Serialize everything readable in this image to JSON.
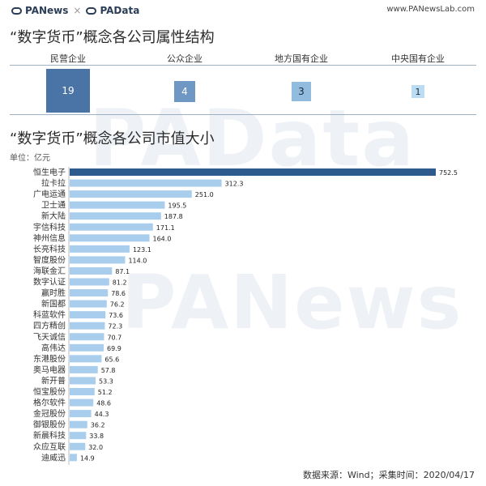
{
  "header": {
    "brand_left": "PANews",
    "brand_right": "PAData",
    "site": "www.PANewsLab.com"
  },
  "titles": {
    "ownership": "“数字货币”概念各公司属性结构",
    "market_cap": "“数字货币”概念各公司市值大小"
  },
  "unit_label": "单位：亿元",
  "ownership": [
    {
      "label": "民营企业",
      "count": "19",
      "color": "#4a74a6",
      "text_color": "#ffffff"
    },
    {
      "label": "公众企业",
      "count": "4",
      "color": "#6f97c3",
      "text_color": "#ffffff"
    },
    {
      "label": "地方国有企业",
      "count": "3",
      "color": "#92bbe0",
      "text_color": "#1d2b3a"
    },
    {
      "label": "中央国有企业",
      "count": "1",
      "color": "#bcdcf3",
      "text_color": "#1d2b3a"
    }
  ],
  "watermarks": [
    "PAData",
    "PANews"
  ],
  "chart_data": {
    "type": "bar",
    "orientation": "horizontal",
    "categories": [
      "恒生电子",
      "拉卡拉",
      "广电运通",
      "卫士通",
      "新大陆",
      "宇信科技",
      "神州信息",
      "长亮科技",
      "智度股份",
      "海联金汇",
      "数字认证",
      "赢时胜",
      "新国都",
      "科蓝软件",
      "四方精创",
      "飞天诚信",
      "高伟达",
      "东港股份",
      "奥马电器",
      "新开普",
      "恒宝股份",
      "格尔软件",
      "金冠股份",
      "御银股份",
      "新晨科技",
      "众应互联",
      "迪威迅"
    ],
    "values": [
      752.5,
      312.3,
      251.0,
      195.5,
      187.8,
      171.1,
      164.0,
      123.1,
      114.0,
      87.1,
      81.2,
      78.6,
      76.2,
      73.6,
      72.3,
      70.7,
      69.9,
      65.6,
      57.8,
      53.3,
      51.2,
      48.6,
      44.3,
      36.2,
      33.8,
      32.0,
      14.9
    ],
    "value_labels": [
      "752.5",
      "312.3",
      "251.0",
      "195.5",
      "187.8",
      "171.1",
      "164.0",
      "123.1",
      "114.0",
      "87.1",
      "81.2",
      "78.6",
      "76.2",
      "73.6",
      "72.3",
      "70.7",
      "69.9",
      "65.6",
      "57.8",
      "53.3",
      "51.2",
      "48.6",
      "44.3",
      "36.2",
      "33.8",
      "32.0",
      "14.9"
    ],
    "title": "“数字货币”概念各公司市值大小",
    "xlabel": "",
    "ylabel": "",
    "unit": "亿元",
    "xlim": [
      0,
      752.5
    ],
    "grid": false,
    "colors": {
      "highlight": "#2e5b8e",
      "bar": "#a9cdec"
    }
  },
  "footer": "数据来源：Wind；采集时间：2020/04/17"
}
